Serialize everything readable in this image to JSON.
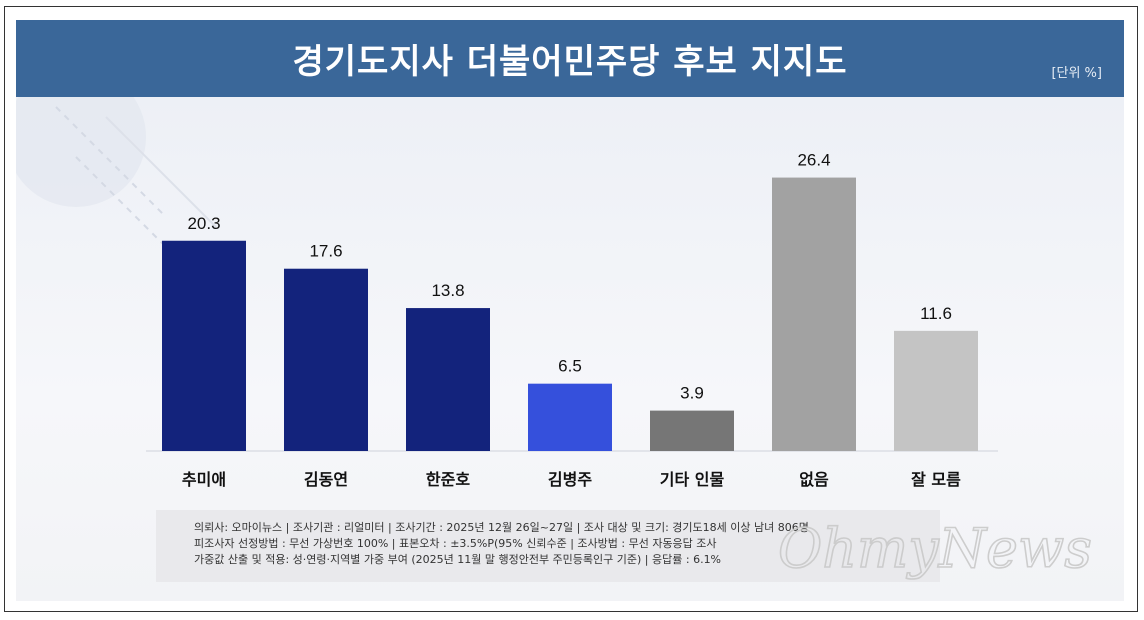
{
  "header": {
    "title": "경기도지사 더불어민주당 후보 지지도",
    "unit": "[단위 %]"
  },
  "chart_data": {
    "type": "bar",
    "title": "경기도지사 더불어민주당 후보 지지도",
    "unit": "[단위 %]",
    "categories": [
      "추미애",
      "김동연",
      "한준호",
      "김병주",
      "기타 인물",
      "없음",
      "잘 모름"
    ],
    "values": [
      20.3,
      17.6,
      13.8,
      6.5,
      3.9,
      26.4,
      11.6
    ],
    "colors": [
      "#13237c",
      "#13237c",
      "#13237c",
      "#3550dc",
      "#767676",
      "#a2a2a2",
      "#c4c4c4"
    ],
    "ylim": [
      0,
      28
    ],
    "grid": false,
    "legend": "none"
  },
  "notes": [
    "의뢰사: 오마이뉴스 | 조사기관 : 리얼미터 | 조사기간 : 2025년 12월 26일~27일 | 조사 대상 및 크기: 경기도18세 이상 남녀 806명",
    "피조사자 선정방법 : 무선 가상번호 100% | 표본오차 : ±3.5%P(95% 신뢰수준 | 조사방법 : 무선 자동응답 조사",
    "가중값 산출 및 적용: 성·연령·지역별 가중 부여 (2025년 11월 말 행정안전부 주민등록인구 기준) | 응답률 : 6.1%"
  ],
  "watermark": "OhmyNews"
}
